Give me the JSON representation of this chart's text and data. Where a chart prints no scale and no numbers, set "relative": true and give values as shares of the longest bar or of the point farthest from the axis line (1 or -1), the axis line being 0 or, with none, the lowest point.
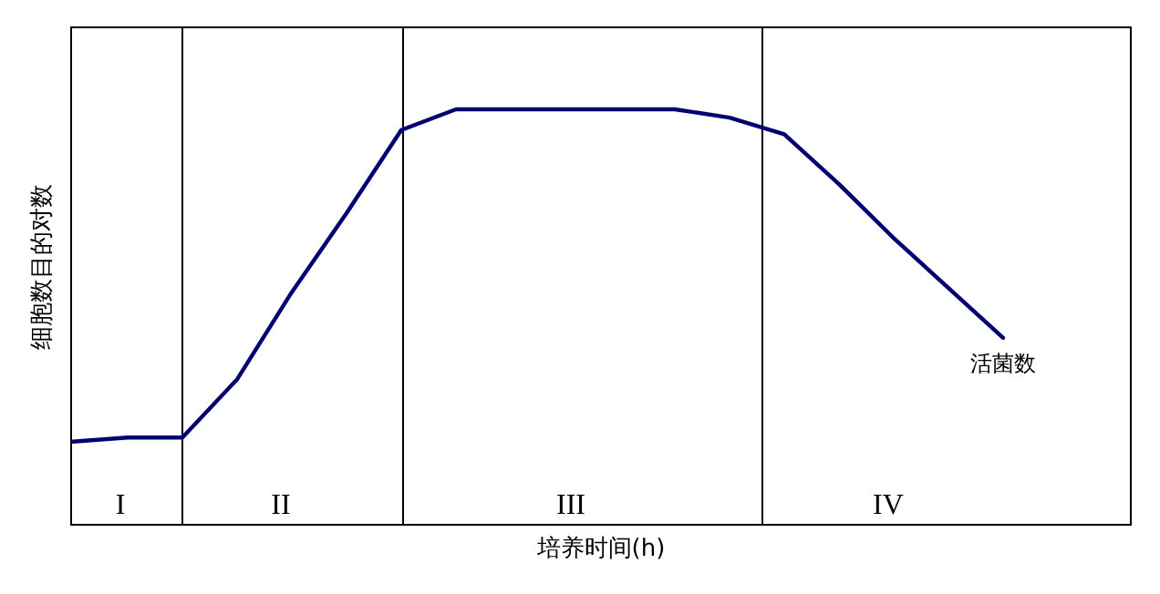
{
  "chart_data": {
    "type": "line",
    "relative": true,
    "xlabel": "培养时间(h)",
    "ylabel": "细胞数目的对数",
    "categories": [
      null,
      null,
      null,
      null,
      null,
      null,
      null,
      null,
      null,
      null,
      null,
      null,
      null,
      null,
      null,
      null,
      null,
      null
    ],
    "series": [
      {
        "color": "#00007f",
        "values": [
          0.2,
          0.21,
          0.21,
          0.35,
          0.56,
          0.75,
          0.95,
          1.0,
          1.0,
          1.0,
          1.0,
          1.0,
          0.98,
          0.94,
          0.82,
          0.69,
          0.57,
          0.45
        ]
      }
    ],
    "annotations": [
      "活菌数",
      "I",
      "II",
      "III",
      "IV"
    ],
    "marker": "none",
    "line_style": "solid"
  }
}
